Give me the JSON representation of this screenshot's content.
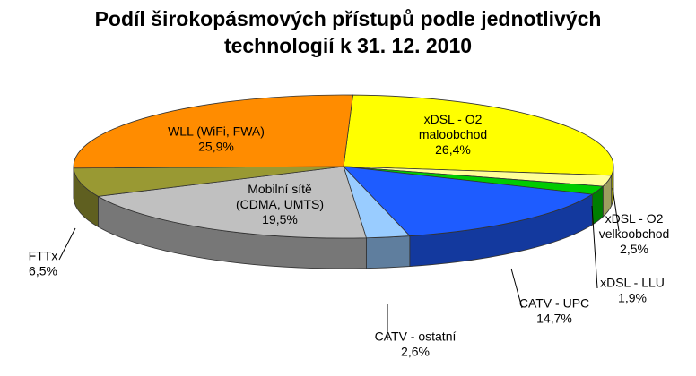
{
  "chart_data": {
    "type": "pie",
    "title": [
      "Podíl širokopásmových přístupů podle jednotlivých",
      "technologií k 31. 12. 2010"
    ],
    "slices": [
      {
        "label": [
          "xDSL - O2",
          "maloobchod"
        ],
        "value_label": "26,4%",
        "value": 26.4,
        "color": "#ffff00"
      },
      {
        "label": [
          "xDSL - O2",
          "velkoobchod"
        ],
        "value_label": "2,5%",
        "value": 2.5,
        "color": "#ffff99"
      },
      {
        "label": [
          "xDSL - LLU"
        ],
        "value_label": "1,9%",
        "value": 1.9,
        "color": "#00cc00"
      },
      {
        "label": [
          "CATV - UPC"
        ],
        "value_label": "14,7%",
        "value": 14.7,
        "color": "#1e5cff"
      },
      {
        "label": [
          "CATV - ostatní"
        ],
        "value_label": "2,6%",
        "value": 2.6,
        "color": "#99ccff"
      },
      {
        "label": [
          "Mobilní sítě",
          "(CDMA, UMTS)"
        ],
        "value_label": "19,5%",
        "value": 19.5,
        "color": "#c0c0c0"
      },
      {
        "label": [
          "FTTx"
        ],
        "value_label": "6,5%",
        "value": 6.5,
        "color": "#999933"
      },
      {
        "label": [
          "WLL (WiFi, FWA)"
        ],
        "value_label": "25,9%",
        "value": 25.9,
        "color": "#ff8c00"
      }
    ]
  }
}
